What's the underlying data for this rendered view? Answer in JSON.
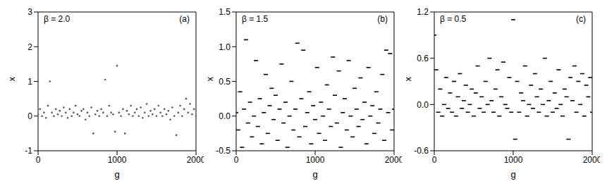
{
  "chart_data": [
    {
      "type": "scatter",
      "annotations": [
        "β = 2.0",
        "(a)"
      ],
      "xlabel": "g",
      "ylabel": "x",
      "xlim": [
        0,
        2000
      ],
      "xticks": [
        0,
        1000,
        2000
      ],
      "ylim": [
        -1,
        3
      ],
      "yticks": [
        -1,
        0,
        1,
        2,
        3
      ],
      "color": "#555555",
      "marker": "dot",
      "x": [
        0,
        25,
        50,
        75,
        100,
        125,
        150,
        175,
        200,
        225,
        250,
        275,
        300,
        325,
        350,
        375,
        400,
        425,
        450,
        475,
        500,
        525,
        550,
        575,
        600,
        625,
        650,
        675,
        700,
        725,
        750,
        775,
        800,
        825,
        850,
        875,
        900,
        925,
        950,
        975,
        1000,
        1025,
        1050,
        1075,
        1100,
        1125,
        1150,
        1175,
        1200,
        1225,
        1250,
        1275,
        1300,
        1325,
        1350,
        1375,
        1400,
        1425,
        1450,
        1475,
        1500,
        1525,
        1550,
        1575,
        1600,
        1625,
        1650,
        1675,
        1700,
        1725,
        1750,
        1775,
        1800,
        1825,
        1850,
        1875,
        1900,
        1925,
        1950,
        1975,
        2000
      ],
      "values": [
        0.05,
        0.2,
        0.0,
        0.1,
        -0.05,
        0.3,
        1.0,
        0.1,
        0.0,
        0.2,
        0.05,
        0.15,
        0.0,
        0.25,
        0.1,
        -0.05,
        0.2,
        0.0,
        0.1,
        0.3,
        0.05,
        0.0,
        0.15,
        0.2,
        -0.1,
        0.1,
        0.0,
        0.25,
        -0.5,
        0.05,
        0.15,
        0.0,
        0.2,
        0.1,
        1.05,
        0.0,
        0.3,
        0.1,
        0.05,
        -0.45,
        1.45,
        0.1,
        0.0,
        0.2,
        -0.5,
        0.15,
        0.05,
        0.3,
        0.0,
        0.1,
        0.2,
        0.0,
        0.25,
        -0.05,
        0.1,
        0.35,
        0.0,
        0.15,
        0.05,
        0.2,
        0.0,
        0.3,
        0.1,
        0.0,
        0.2,
        0.05,
        0.15,
        -0.1,
        0.25,
        0.0,
        -0.55,
        0.1,
        0.3,
        0.0,
        0.2,
        0.5,
        0.1,
        0.35,
        0.05,
        0.2,
        0.0
      ]
    },
    {
      "type": "scatter",
      "annotations": [
        "β = 1.5",
        "(b)"
      ],
      "xlabel": "g",
      "ylabel": "x",
      "xlim": [
        0,
        2000
      ],
      "xticks": [
        0,
        1000,
        2000
      ],
      "ylim": [
        -0.5,
        1.5
      ],
      "yticks": [
        {
          "value": -0.5,
          "label": "-0.5"
        },
        {
          "value": 0,
          "label": "0.0"
        },
        {
          "value": 0.5,
          "label": "0.5"
        },
        {
          "value": 1,
          "label": "1.0"
        },
        {
          "value": 1.5,
          "label": "1.5"
        }
      ],
      "color": "#000000",
      "marker": "dash",
      "x": [
        0,
        25,
        50,
        75,
        100,
        125,
        150,
        175,
        200,
        225,
        250,
        275,
        300,
        325,
        350,
        375,
        400,
        425,
        450,
        475,
        500,
        525,
        550,
        575,
        600,
        625,
        650,
        675,
        700,
        725,
        750,
        775,
        800,
        825,
        850,
        875,
        900,
        925,
        950,
        975,
        1000,
        1025,
        1050,
        1075,
        1100,
        1125,
        1150,
        1175,
        1200,
        1225,
        1250,
        1275,
        1300,
        1325,
        1350,
        1375,
        1400,
        1425,
        1450,
        1475,
        1500,
        1525,
        1550,
        1575,
        1600,
        1625,
        1650,
        1675,
        1700,
        1725,
        1750,
        1775,
        1800,
        1825,
        1850,
        1875,
        1900,
        1925,
        1950,
        1975,
        2000
      ],
      "values": [
        0.05,
        -0.2,
        0.35,
        -0.45,
        0.1,
        1.1,
        -0.1,
        0.2,
        -0.3,
        0.0,
        0.8,
        -0.15,
        0.25,
        -0.4,
        0.05,
        0.6,
        -0.25,
        0.15,
        0.4,
        -0.05,
        0.3,
        -0.35,
        0.1,
        0.75,
        -0.1,
        0.2,
        -0.45,
        0.0,
        0.5,
        -0.2,
        0.1,
        1.05,
        -0.3,
        0.25,
        0.95,
        -0.15,
        0.05,
        0.35,
        -0.4,
        0.15,
        -0.05,
        0.7,
        -0.25,
        0.2,
        0.0,
        -0.35,
        0.45,
        0.1,
        -0.15,
        0.85,
        0.3,
        -0.1,
        0.65,
        -0.45,
        0.05,
        0.25,
        -0.2,
        0.8,
        0.0,
        -0.3,
        0.4,
        0.1,
        -0.15,
        0.55,
        -0.05,
        0.2,
        -0.4,
        0.7,
        0.0,
        0.15,
        -0.25,
        0.35,
        -0.1,
        0.1,
        0.6,
        -0.35,
        0.95,
        0.05,
        0.9,
        -0.2,
        0.1
      ]
    },
    {
      "type": "scatter",
      "annotations": [
        "β = 0.5",
        "(c)"
      ],
      "xlabel": "g",
      "ylabel": "x",
      "xlim": [
        0,
        2000
      ],
      "xticks": [
        0,
        1000,
        2000
      ],
      "ylim": [
        -0.6,
        1.2
      ],
      "yticks": [
        {
          "value": -0.6,
          "label": "-0.6"
        },
        {
          "value": 0,
          "label": "0.0"
        },
        {
          "value": 0.6,
          "label": "0.6"
        },
        {
          "value": 1.2,
          "label": "1.2"
        }
      ],
      "color": "#000000",
      "marker": "dash",
      "x": [
        0,
        25,
        50,
        75,
        100,
        125,
        150,
        175,
        200,
        225,
        250,
        275,
        300,
        325,
        350,
        375,
        400,
        425,
        450,
        475,
        500,
        525,
        550,
        575,
        600,
        625,
        650,
        675,
        700,
        725,
        750,
        775,
        800,
        825,
        850,
        875,
        900,
        925,
        950,
        975,
        1000,
        1025,
        1050,
        1075,
        1100,
        1125,
        1150,
        1175,
        1200,
        1225,
        1250,
        1275,
        1300,
        1325,
        1350,
        1375,
        1400,
        1425,
        1450,
        1475,
        1500,
        1525,
        1550,
        1575,
        1600,
        1625,
        1650,
        1675,
        1700,
        1725,
        1750,
        1775,
        1800,
        1825,
        1850,
        1875,
        1900,
        1925,
        1950,
        1975,
        2000
      ],
      "values": [
        0.9,
        0.45,
        -0.1,
        0.2,
        -0.15,
        0.0,
        0.35,
        -0.05,
        0.15,
        -0.1,
        0.3,
        -0.15,
        0.1,
        0.4,
        -0.05,
        0.05,
        0.25,
        -0.1,
        0.0,
        0.2,
        -0.15,
        0.15,
        0.5,
        -0.05,
        0.1,
        -0.1,
        0.3,
        0.0,
        0.6,
        0.05,
        -0.1,
        0.2,
        0.45,
        -0.15,
        0.1,
        0.55,
        0.0,
        -0.05,
        0.35,
        -0.1,
        1.1,
        -0.45,
        0.3,
        -0.1,
        0.15,
        0.05,
        0.5,
        -0.15,
        0.0,
        0.25,
        -0.05,
        0.4,
        0.1,
        -0.1,
        0.2,
        0.0,
        0.6,
        -0.15,
        0.05,
        0.3,
        -0.1,
        0.15,
        -0.05,
        0.45,
        0.0,
        -0.15,
        0.2,
        0.1,
        -0.45,
        0.35,
        0.05,
        0.5,
        -0.1,
        0.3,
        0.0,
        0.4,
        -0.15,
        0.25,
        0.1,
        0.35,
        -0.1
      ]
    }
  ]
}
